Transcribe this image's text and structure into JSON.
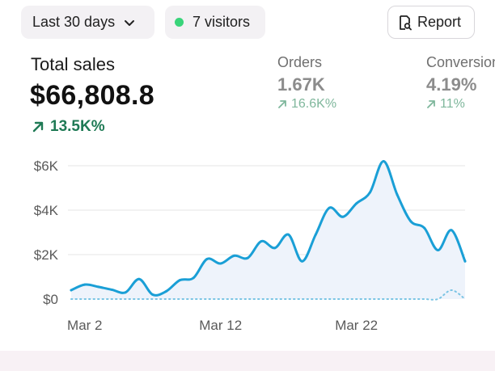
{
  "filters": {
    "range_label": "Last 30 days",
    "visitors_label": "7 visitors",
    "report_label": "Report"
  },
  "total_sales": {
    "title": "Total sales",
    "value": "$66,808.8",
    "delta": "13.5K%"
  },
  "orders": {
    "title": "Orders",
    "value": "1.67K",
    "delta": "16.6K%"
  },
  "conversion": {
    "title": "Conversion",
    "value": "4.19%",
    "delta": "11%"
  },
  "colors": {
    "line": "#1a9fd6",
    "area": "#eef3fb",
    "positive_strong": "#1f7a55",
    "positive_muted": "#7fb79c",
    "visitors_dot": "#39d47a"
  },
  "chart_data": {
    "type": "line",
    "x": [
      "Mar 1",
      "Mar 2",
      "Mar 3",
      "Mar 4",
      "Mar 5",
      "Mar 6",
      "Mar 7",
      "Mar 8",
      "Mar 9",
      "Mar 10",
      "Mar 11",
      "Mar 12",
      "Mar 13",
      "Mar 14",
      "Mar 15",
      "Mar 16",
      "Mar 17",
      "Mar 18",
      "Mar 19",
      "Mar 20",
      "Mar 21",
      "Mar 22",
      "Mar 23",
      "Mar 24",
      "Mar 25",
      "Mar 26",
      "Mar 27",
      "Mar 28",
      "Mar 29",
      "Mar 30"
    ],
    "series": [
      {
        "values": [
          400,
          650,
          550,
          420,
          300,
          900,
          200,
          350,
          850,
          950,
          1800,
          1600,
          1950,
          1850,
          2600,
          2300,
          2900,
          1700,
          2900,
          4100,
          3700,
          4300,
          4800,
          6200,
          4700,
          3500,
          3200,
          2200,
          3100,
          1700
        ]
      },
      {
        "values": [
          0,
          0,
          0,
          0,
          0,
          0,
          0,
          0,
          0,
          0,
          0,
          0,
          0,
          0,
          0,
          0,
          0,
          0,
          0,
          0,
          0,
          0,
          0,
          0,
          0,
          0,
          0,
          0,
          400,
          0
        ],
        "style": "dotted"
      }
    ],
    "tick_labels_x": [
      "Mar 2",
      "Mar 12",
      "Mar 22"
    ],
    "tick_labels_y": [
      "$0",
      "$2K",
      "$4K",
      "$6K"
    ],
    "ylim": [
      0,
      6000
    ],
    "grid": true
  }
}
